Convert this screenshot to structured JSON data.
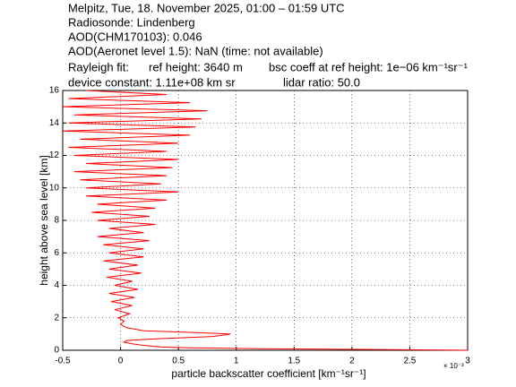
{
  "chart_data": {
    "type": "line",
    "header": [
      [
        "Melpitz, Tue, 18. November 2025, 01:00 – 01:59 UTC"
      ],
      [
        "Radiosonde: Lindenberg"
      ],
      [
        "AOD(CHM170103): 0.046"
      ],
      [
        "AOD(Aeronet level 1.5): NaN   (time: not available)"
      ],
      [
        "Rayleigh fit:",
        "ref height: 3640 m",
        "bsc coeff at ref height: 1e−06 km⁻¹sr⁻¹"
      ],
      [
        "device constant: 1.11e+08 km sr",
        "lidar ratio: 50.0"
      ]
    ],
    "xlabel": "particle backscatter coefficient [km⁻¹sr⁻¹]",
    "ylabel": "height above sea level [km]",
    "x_multiplier": "× 10⁻³",
    "color": "#ff0000",
    "grid": true,
    "xlim": [
      -0.5,
      3
    ],
    "xticks": [
      -0.5,
      0,
      0.5,
      1,
      1.5,
      2,
      2.5,
      3
    ],
    "ylim": [
      0,
      16
    ],
    "yticks": [
      0,
      2,
      4,
      6,
      8,
      10,
      12,
      14,
      16
    ],
    "x": [
      3.0,
      2.2,
      1.2,
      0.6,
      0.35,
      0.2,
      0.1,
      0.03,
      0.05,
      0.3,
      0.8,
      0.95,
      0.6,
      0.2,
      0.05,
      0.0,
      0.03,
      -0.02,
      0.08,
      -0.05,
      0.1,
      -0.08,
      0.12,
      -0.1,
      0.15,
      -0.05,
      0.1,
      -0.12,
      0.18,
      -0.1,
      0.15,
      -0.15,
      0.2,
      -0.1,
      0.2,
      -0.15,
      0.25,
      -0.2,
      0.2,
      -0.1,
      0.3,
      -0.2,
      0.25,
      -0.25,
      0.3,
      -0.2,
      0.4,
      -0.3,
      0.5,
      -0.3,
      0.35,
      -0.35,
      0.4,
      -0.4,
      0.45,
      -0.3,
      0.5,
      -0.4,
      0.4,
      -0.45,
      0.5,
      -0.35,
      0.6,
      -0.5,
      0.65,
      -0.45,
      0.7,
      -0.4,
      0.75,
      -0.5,
      0.6,
      -0.45,
      0.4,
      -0.3
    ],
    "y": [
      0,
      0.05,
      0.1,
      0.15,
      0.2,
      0.3,
      0.4,
      0.5,
      0.6,
      0.7,
      0.85,
      1.0,
      1.1,
      1.2,
      1.4,
      1.6,
      1.8,
      2.0,
      2.25,
      2.5,
      2.75,
      3,
      3.25,
      3.5,
      3.75,
      4,
      4.25,
      4.5,
      4.75,
      5,
      5.25,
      5.5,
      5.75,
      6,
      6.25,
      6.5,
      6.75,
      7,
      7.25,
      7.5,
      7.75,
      8,
      8.25,
      8.5,
      8.75,
      9,
      9.25,
      9.5,
      9.75,
      10,
      10.25,
      10.5,
      10.75,
      11,
      11.25,
      11.5,
      11.75,
      12,
      12.25,
      12.5,
      12.75,
      13,
      13.25,
      13.5,
      13.75,
      14,
      14.25,
      14.5,
      14.75,
      15,
      15.25,
      15.5,
      15.75,
      16
    ]
  }
}
